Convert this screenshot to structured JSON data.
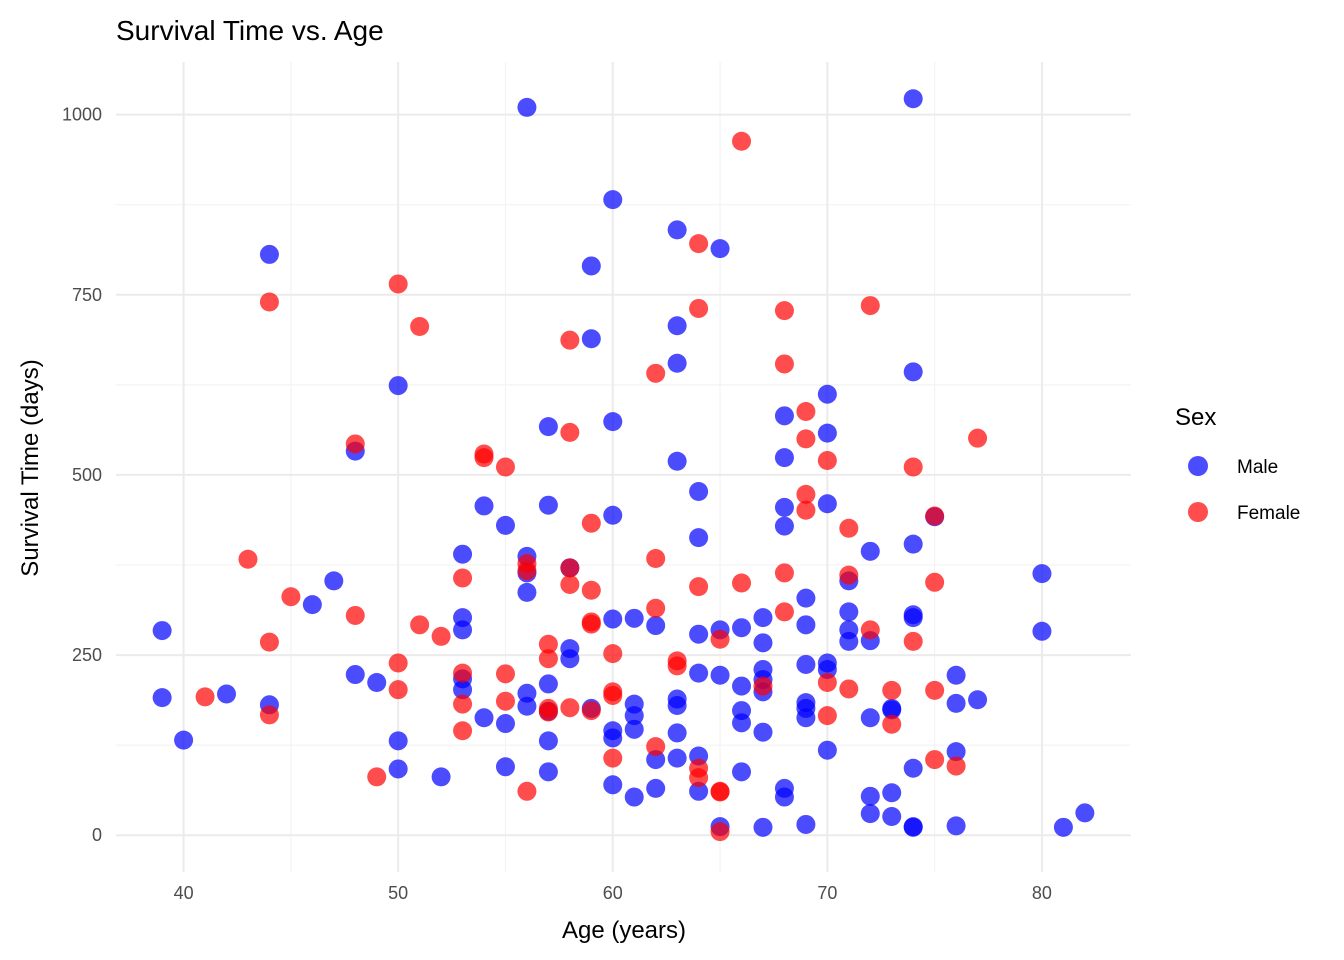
{
  "chart_data": {
    "type": "scatter",
    "title": "Survival Time vs. Age",
    "xlabel": "Age (years)",
    "ylabel": "Survival Time (days)",
    "xlim": [
      36.85,
      84.15
    ],
    "ylim": [
      -51,
      1073
    ],
    "x_ticks": [
      40,
      50,
      60,
      70,
      80
    ],
    "y_ticks": [
      0,
      250,
      500,
      750,
      1000
    ],
    "grid": true,
    "legend": {
      "title": "Sex",
      "position": "right"
    },
    "series": [
      {
        "name": "Male",
        "color": "#0000ff",
        "points": [
          [
            39,
            284
          ],
          [
            39,
            191
          ],
          [
            40,
            132
          ],
          [
            42,
            196
          ],
          [
            44,
            806
          ],
          [
            44,
            181
          ],
          [
            46,
            320
          ],
          [
            47,
            353
          ],
          [
            48,
            533
          ],
          [
            48,
            223
          ],
          [
            49,
            212
          ],
          [
            50,
            624
          ],
          [
            50,
            131
          ],
          [
            50,
            92
          ],
          [
            52,
            81
          ],
          [
            53,
            390
          ],
          [
            53,
            302
          ],
          [
            53,
            285
          ],
          [
            53,
            217
          ],
          [
            53,
            202
          ],
          [
            54,
            457
          ],
          [
            54,
            163
          ],
          [
            55,
            430
          ],
          [
            55,
            155
          ],
          [
            55,
            95
          ],
          [
            56,
            1010
          ],
          [
            56,
            387
          ],
          [
            56,
            364
          ],
          [
            56,
            337
          ],
          [
            56,
            197
          ],
          [
            56,
            179
          ],
          [
            57,
            567
          ],
          [
            57,
            458
          ],
          [
            57,
            210
          ],
          [
            57,
            172
          ],
          [
            57,
            131
          ],
          [
            57,
            88
          ],
          [
            58,
            371
          ],
          [
            58,
            259
          ],
          [
            58,
            245
          ],
          [
            59,
            790
          ],
          [
            59,
            689
          ],
          [
            59,
            176
          ],
          [
            60,
            882
          ],
          [
            60,
            574
          ],
          [
            60,
            444
          ],
          [
            60,
            300
          ],
          [
            60,
            145
          ],
          [
            60,
            135
          ],
          [
            60,
            70
          ],
          [
            61,
            301
          ],
          [
            61,
            182
          ],
          [
            61,
            166
          ],
          [
            61,
            147
          ],
          [
            61,
            53
          ],
          [
            62,
            291
          ],
          [
            62,
            105
          ],
          [
            62,
            65
          ],
          [
            63,
            840
          ],
          [
            63,
            707
          ],
          [
            63,
            655
          ],
          [
            63,
            519
          ],
          [
            63,
            189
          ],
          [
            63,
            180
          ],
          [
            63,
            142
          ],
          [
            63,
            107
          ],
          [
            64,
            477
          ],
          [
            64,
            413
          ],
          [
            64,
            279
          ],
          [
            64,
            225
          ],
          [
            64,
            110
          ],
          [
            64,
            61
          ],
          [
            65,
            814
          ],
          [
            65,
            285
          ],
          [
            65,
            222
          ],
          [
            65,
            12
          ],
          [
            66,
            288
          ],
          [
            66,
            207
          ],
          [
            66,
            173
          ],
          [
            66,
            156
          ],
          [
            66,
            88
          ],
          [
            67,
            302
          ],
          [
            67,
            267
          ],
          [
            67,
            230
          ],
          [
            67,
            216
          ],
          [
            67,
            199
          ],
          [
            67,
            143
          ],
          [
            67,
            11
          ],
          [
            68,
            582
          ],
          [
            68,
            524
          ],
          [
            68,
            455
          ],
          [
            68,
            429
          ],
          [
            68,
            65
          ],
          [
            68,
            53
          ],
          [
            69,
            329
          ],
          [
            69,
            292
          ],
          [
            69,
            237
          ],
          [
            69,
            184
          ],
          [
            69,
            176
          ],
          [
            69,
            163
          ],
          [
            69,
            15
          ],
          [
            70,
            612
          ],
          [
            70,
            558
          ],
          [
            70,
            460
          ],
          [
            70,
            239
          ],
          [
            70,
            230
          ],
          [
            70,
            118
          ],
          [
            71,
            353
          ],
          [
            71,
            310
          ],
          [
            71,
            285
          ],
          [
            71,
            269
          ],
          [
            72,
            394
          ],
          [
            72,
            270
          ],
          [
            72,
            163
          ],
          [
            72,
            54
          ],
          [
            72,
            30
          ],
          [
            73,
            176
          ],
          [
            73,
            174
          ],
          [
            73,
            59
          ],
          [
            73,
            26
          ],
          [
            74,
            1022
          ],
          [
            74,
            643
          ],
          [
            74,
            404
          ],
          [
            74,
            306
          ],
          [
            74,
            302
          ],
          [
            74,
            93
          ],
          [
            74,
            12
          ],
          [
            74,
            11
          ],
          [
            75,
            442
          ],
          [
            76,
            222
          ],
          [
            76,
            183
          ],
          [
            76,
            116
          ],
          [
            76,
            13
          ],
          [
            77,
            188
          ],
          [
            80,
            363
          ],
          [
            80,
            283
          ],
          [
            81,
            11
          ],
          [
            82,
            31
          ]
        ]
      },
      {
        "name": "Female",
        "color": "#ff0000",
        "points": [
          [
            41,
            192
          ],
          [
            43,
            383
          ],
          [
            44,
            740
          ],
          [
            44,
            268
          ],
          [
            44,
            167
          ],
          [
            45,
            331
          ],
          [
            48,
            543
          ],
          [
            48,
            305
          ],
          [
            49,
            81
          ],
          [
            50,
            765
          ],
          [
            50,
            239
          ],
          [
            50,
            202
          ],
          [
            51,
            706
          ],
          [
            51,
            292
          ],
          [
            52,
            276
          ],
          [
            53,
            357
          ],
          [
            53,
            225
          ],
          [
            53,
            182
          ],
          [
            53,
            145
          ],
          [
            54,
            529
          ],
          [
            54,
            524
          ],
          [
            55,
            511
          ],
          [
            55,
            224
          ],
          [
            55,
            186
          ],
          [
            56,
            377
          ],
          [
            56,
            367
          ],
          [
            56,
            61
          ],
          [
            57,
            265
          ],
          [
            57,
            245
          ],
          [
            57,
            176
          ],
          [
            57,
            171
          ],
          [
            58,
            687
          ],
          [
            58,
            559
          ],
          [
            58,
            371
          ],
          [
            58,
            348
          ],
          [
            58,
            177
          ],
          [
            59,
            433
          ],
          [
            59,
            340
          ],
          [
            59,
            296
          ],
          [
            59,
            293
          ],
          [
            59,
            173
          ],
          [
            60,
            252
          ],
          [
            60,
            199
          ],
          [
            60,
            194
          ],
          [
            60,
            107
          ],
          [
            62,
            641
          ],
          [
            62,
            384
          ],
          [
            62,
            315
          ],
          [
            62,
            123
          ],
          [
            63,
            242
          ],
          [
            63,
            235
          ],
          [
            64,
            821
          ],
          [
            64,
            731
          ],
          [
            64,
            345
          ],
          [
            64,
            93
          ],
          [
            64,
            80
          ],
          [
            65,
            272
          ],
          [
            65,
            61
          ],
          [
            65,
            60
          ],
          [
            65,
            5
          ],
          [
            66,
            963
          ],
          [
            66,
            350
          ],
          [
            67,
            207
          ],
          [
            68,
            728
          ],
          [
            68,
            654
          ],
          [
            68,
            364
          ],
          [
            68,
            310
          ],
          [
            69,
            588
          ],
          [
            69,
            550
          ],
          [
            69,
            473
          ],
          [
            69,
            451
          ],
          [
            70,
            520
          ],
          [
            70,
            212
          ],
          [
            70,
            166
          ],
          [
            71,
            426
          ],
          [
            71,
            361
          ],
          [
            71,
            203
          ],
          [
            72,
            735
          ],
          [
            72,
            285
          ],
          [
            73,
            201
          ],
          [
            73,
            154
          ],
          [
            74,
            511
          ],
          [
            74,
            269
          ],
          [
            75,
            443
          ],
          [
            75,
            351
          ],
          [
            75,
            201
          ],
          [
            75,
            105
          ],
          [
            76,
            96
          ],
          [
            77,
            551
          ]
        ]
      }
    ]
  }
}
